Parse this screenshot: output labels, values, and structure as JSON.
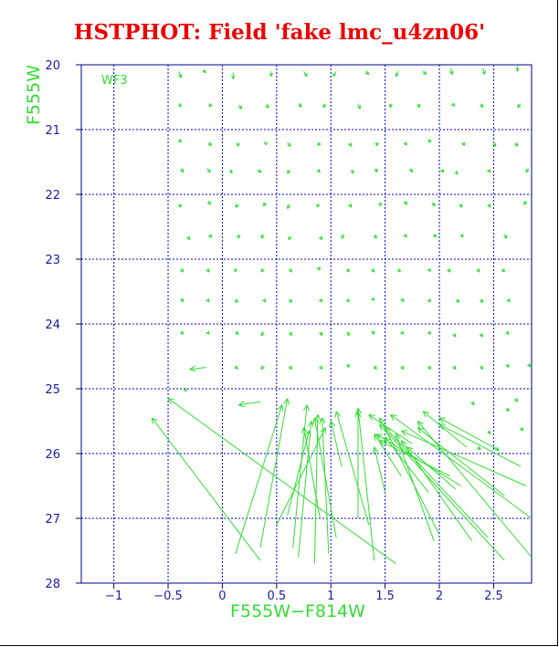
{
  "chart_data": {
    "type": "vector-field",
    "title": "HSTPHOT: Field 'fake lmc_u4zn06'",
    "panel_label": "WF3",
    "xlabel": "F555W−F814W",
    "ylabel": "F555W",
    "xlim": [
      -1.3,
      2.85
    ],
    "ylim": [
      28,
      20
    ],
    "x_ticks": [
      "−1",
      "−0.5",
      "0",
      "0.5",
      "1",
      "1.5",
      "2",
      "2.5"
    ],
    "x_tick_values": [
      -1,
      -0.5,
      0,
      0.5,
      1,
      1.5,
      2,
      2.5
    ],
    "y_ticks": [
      "20",
      "21",
      "22",
      "23",
      "24",
      "25",
      "26",
      "27",
      "28"
    ],
    "y_tick_values": [
      20,
      21,
      22,
      23,
      24,
      25,
      26,
      27,
      28
    ],
    "grid": true,
    "colors": {
      "vectors": "#33dd33",
      "grid": "#0000cc",
      "axis": "#000080",
      "title": "#ee0000"
    },
    "vectors": [
      [
        -0.4,
        20.1,
        -0.38,
        20.2
      ],
      [
        -0.18,
        20.08,
        -0.15,
        20.12
      ],
      [
        0.1,
        20.12,
        0.1,
        20.22
      ],
      [
        0.45,
        20.1,
        0.45,
        20.18
      ],
      [
        0.75,
        20.1,
        0.78,
        20.18
      ],
      [
        1.05,
        20.1,
        1.02,
        20.18
      ],
      [
        1.32,
        20.1,
        1.35,
        20.15
      ],
      [
        1.62,
        20.1,
        1.6,
        20.18
      ],
      [
        1.85,
        20.1,
        1.88,
        20.15
      ],
      [
        2.1,
        20.05,
        2.12,
        20.15
      ],
      [
        2.4,
        20.05,
        2.42,
        20.15
      ],
      [
        2.72,
        20.02,
        2.72,
        20.1
      ],
      [
        -0.4,
        20.6,
        -0.38,
        20.65
      ],
      [
        -0.1,
        20.6,
        -0.12,
        20.65
      ],
      [
        0.15,
        20.62,
        0.18,
        20.68
      ],
      [
        0.4,
        20.62,
        0.43,
        20.66
      ],
      [
        0.7,
        20.6,
        0.73,
        20.65
      ],
      [
        0.95,
        20.6,
        0.93,
        20.66
      ],
      [
        1.25,
        20.6,
        1.27,
        20.68
      ],
      [
        1.55,
        20.6,
        1.55,
        20.66
      ],
      [
        1.8,
        20.6,
        1.82,
        20.66
      ],
      [
        2.12,
        20.6,
        2.14,
        20.64
      ],
      [
        2.38,
        20.6,
        2.4,
        20.66
      ],
      [
        2.75,
        20.6,
        2.72,
        20.66
      ],
      [
        -0.4,
        21.15,
        -0.38,
        21.2
      ],
      [
        -0.13,
        21.2,
        -0.1,
        21.25
      ],
      [
        0.15,
        21.2,
        0.14,
        21.26
      ],
      [
        0.4,
        21.2,
        0.4,
        21.24
      ],
      [
        0.6,
        21.2,
        0.63,
        21.26
      ],
      [
        0.9,
        21.2,
        0.88,
        21.25
      ],
      [
        1.17,
        21.2,
        1.19,
        21.26
      ],
      [
        1.42,
        21.2,
        1.43,
        21.25
      ],
      [
        1.68,
        21.2,
        1.7,
        21.24
      ],
      [
        1.92,
        21.15,
        1.9,
        21.2
      ],
      [
        2.22,
        21.2,
        2.23,
        21.25
      ],
      [
        2.5,
        21.2,
        2.52,
        21.26
      ],
      [
        2.7,
        21.2,
        2.72,
        21.26
      ],
      [
        -0.38,
        21.6,
        -0.36,
        21.66
      ],
      [
        -0.14,
        21.6,
        -0.11,
        21.66
      ],
      [
        0.07,
        21.62,
        0.09,
        21.67
      ],
      [
        0.32,
        21.62,
        0.36,
        21.66
      ],
      [
        0.62,
        21.62,
        0.6,
        21.68
      ],
      [
        0.88,
        21.62,
        0.9,
        21.66
      ],
      [
        1.2,
        21.62,
        1.2,
        21.68
      ],
      [
        1.42,
        21.6,
        1.42,
        21.66
      ],
      [
        1.73,
        21.6,
        1.75,
        21.66
      ],
      [
        2.02,
        21.62,
        2.04,
        21.66
      ],
      [
        2.15,
        21.65,
        2.17,
        21.69
      ],
      [
        2.45,
        21.62,
        2.47,
        21.66
      ],
      [
        2.82,
        21.6,
        2.8,
        21.66
      ],
      [
        -0.4,
        22.15,
        -0.38,
        22.2
      ],
      [
        -0.13,
        22.1,
        -0.11,
        22.16
      ],
      [
        0.15,
        22.15,
        0.12,
        22.2
      ],
      [
        0.4,
        22.12,
        0.38,
        22.18
      ],
      [
        0.62,
        22.15,
        0.6,
        22.22
      ],
      [
        0.88,
        22.15,
        0.88,
        22.2
      ],
      [
        1.17,
        22.15,
        1.19,
        22.2
      ],
      [
        1.45,
        22.12,
        1.46,
        22.18
      ],
      [
        1.68,
        22.1,
        1.7,
        22.16
      ],
      [
        1.93,
        22.12,
        1.96,
        22.18
      ],
      [
        2.19,
        22.15,
        2.21,
        22.2
      ],
      [
        2.45,
        22.15,
        2.47,
        22.2
      ],
      [
        2.8,
        22.1,
        2.78,
        22.16
      ],
      [
        -0.32,
        22.65,
        -0.3,
        22.7
      ],
      [
        -0.12,
        22.62,
        -0.1,
        22.67
      ],
      [
        0.15,
        22.62,
        0.15,
        22.68
      ],
      [
        0.38,
        22.62,
        0.36,
        22.68
      ],
      [
        0.63,
        22.65,
        0.61,
        22.7
      ],
      [
        0.9,
        22.65,
        0.92,
        22.7
      ],
      [
        1.12,
        22.62,
        1.1,
        22.68
      ],
      [
        1.4,
        22.62,
        1.42,
        22.68
      ],
      [
        1.68,
        22.62,
        1.7,
        22.66
      ],
      [
        1.95,
        22.62,
        1.97,
        22.66
      ],
      [
        2.2,
        22.62,
        2.22,
        22.66
      ],
      [
        2.6,
        22.62,
        2.62,
        22.68
      ],
      [
        -0.38,
        23.15,
        -0.36,
        23.2
      ],
      [
        -0.14,
        23.15,
        -0.12,
        23.2
      ],
      [
        0.12,
        23.15,
        0.12,
        23.2
      ],
      [
        0.38,
        23.15,
        0.36,
        23.2
      ],
      [
        0.62,
        23.15,
        0.64,
        23.2
      ],
      [
        0.88,
        23.12,
        0.9,
        23.17
      ],
      [
        1.15,
        23.15,
        1.17,
        23.2
      ],
      [
        1.38,
        23.15,
        1.4,
        23.2
      ],
      [
        1.62,
        23.15,
        1.64,
        23.2
      ],
      [
        1.9,
        23.15,
        1.92,
        23.19
      ],
      [
        2.08,
        23.15,
        2.1,
        23.2
      ],
      [
        2.35,
        23.15,
        2.37,
        23.2
      ],
      [
        2.58,
        23.15,
        2.6,
        23.2
      ],
      [
        -0.38,
        23.6,
        -0.36,
        23.66
      ],
      [
        -0.14,
        23.62,
        -0.12,
        23.66
      ],
      [
        0.12,
        23.62,
        0.14,
        23.67
      ],
      [
        0.38,
        23.62,
        0.4,
        23.66
      ],
      [
        0.62,
        23.62,
        0.64,
        23.67
      ],
      [
        0.9,
        23.62,
        0.92,
        23.66
      ],
      [
        1.15,
        23.62,
        1.17,
        23.66
      ],
      [
        1.38,
        23.6,
        1.4,
        23.64
      ],
      [
        1.65,
        23.6,
        1.67,
        23.66
      ],
      [
        1.9,
        23.62,
        1.92,
        23.66
      ],
      [
        2.16,
        23.62,
        2.18,
        23.67
      ],
      [
        2.38,
        23.62,
        2.4,
        23.67
      ],
      [
        2.63,
        23.62,
        2.65,
        23.66
      ],
      [
        -0.38,
        24.12,
        -0.36,
        24.16
      ],
      [
        -0.14,
        24.12,
        -0.12,
        24.16
      ],
      [
        0.12,
        24.12,
        0.15,
        24.16
      ],
      [
        0.38,
        24.12,
        0.36,
        24.18
      ],
      [
        0.62,
        24.12,
        0.64,
        24.18
      ],
      [
        0.9,
        24.12,
        0.92,
        24.18
      ],
      [
        1.15,
        24.12,
        1.17,
        24.18
      ],
      [
        1.38,
        24.1,
        1.4,
        24.16
      ],
      [
        1.65,
        24.12,
        1.67,
        24.16
      ],
      [
        1.9,
        24.12,
        1.92,
        24.16
      ],
      [
        2.13,
        24.15,
        2.15,
        24.2
      ],
      [
        2.38,
        24.15,
        2.4,
        24.2
      ],
      [
        2.62,
        24.12,
        2.64,
        24.16
      ],
      [
        -0.15,
        24.67,
        -0.3,
        24.7
      ],
      [
        0.12,
        24.65,
        0.14,
        24.7
      ],
      [
        0.38,
        24.65,
        0.36,
        24.7
      ],
      [
        0.62,
        24.65,
        0.64,
        24.7
      ],
      [
        0.9,
        24.65,
        0.92,
        24.7
      ],
      [
        1.15,
        24.62,
        1.17,
        24.67
      ],
      [
        1.4,
        24.65,
        1.42,
        24.7
      ],
      [
        1.65,
        24.65,
        1.67,
        24.7
      ],
      [
        1.9,
        24.65,
        1.92,
        24.7
      ],
      [
        2.13,
        24.65,
        2.15,
        24.7
      ],
      [
        2.38,
        24.65,
        2.4,
        24.7
      ],
      [
        2.62,
        24.62,
        2.64,
        24.67
      ],
      [
        2.82,
        24.62,
        2.84,
        24.66
      ],
      [
        -0.35,
        25.0,
        -0.33,
        25.04
      ],
      [
        0.35,
        25.2,
        0.15,
        25.25
      ],
      [
        2.7,
        25.15,
        2.72,
        25.2
      ],
      [
        2.3,
        25.2,
        2.32,
        25.25
      ],
      [
        2.62,
        25.3,
        2.64,
        25.35
      ],
      [
        2.45,
        25.65,
        2.47,
        25.7
      ],
      [
        2.75,
        25.6,
        2.77,
        25.65
      ],
      [
        2.35,
        25.9,
        2.38,
        25.94
      ],
      [
        2.5,
        25.9,
        2.55,
        25.95
      ],
      [
        0.35,
        27.65,
        -0.65,
        25.45
      ],
      [
        1.6,
        27.7,
        -0.5,
        25.15
      ],
      [
        0.12,
        27.55,
        0.55,
        25.25
      ],
      [
        0.35,
        27.45,
        0.6,
        25.15
      ],
      [
        0.65,
        27.45,
        0.78,
        25.25
      ],
      [
        0.7,
        27.6,
        0.82,
        25.5
      ],
      [
        0.85,
        27.7,
        0.88,
        25.4
      ],
      [
        0.98,
        27.55,
        0.92,
        25.45
      ],
      [
        1.4,
        27.65,
        1.25,
        25.3
      ],
      [
        1.05,
        27.3,
        0.85,
        25.45
      ],
      [
        1.25,
        27.0,
        1.25,
        25.35
      ],
      [
        1.35,
        27.1,
        1.05,
        25.35
      ],
      [
        2.0,
        27.25,
        1.45,
        25.45
      ],
      [
        2.85,
        27.0,
        1.55,
        25.4
      ],
      [
        2.6,
        27.65,
        1.45,
        25.55
      ],
      [
        2.85,
        27.6,
        1.8,
        25.5
      ],
      [
        2.8,
        26.5,
        1.65,
        25.65
      ],
      [
        2.45,
        27.3,
        1.5,
        25.6
      ],
      [
        2.3,
        27.35,
        1.65,
        25.8
      ],
      [
        1.95,
        27.35,
        1.6,
        25.7
      ],
      [
        1.9,
        26.6,
        1.5,
        25.75
      ],
      [
        2.6,
        26.65,
        1.8,
        25.6
      ],
      [
        2.2,
        26.5,
        1.42,
        25.7
      ],
      [
        1.65,
        26.35,
        1.4,
        25.7
      ],
      [
        2.1,
        26.35,
        1.45,
        25.8
      ],
      [
        2.15,
        26.55,
        1.7,
        25.9
      ],
      [
        2.75,
        26.2,
        2.0,
        25.55
      ],
      [
        2.55,
        25.95,
        2.0,
        25.45
      ],
      [
        0.5,
        27.1,
        0.95,
        25.6
      ],
      [
        0.6,
        26.95,
        0.8,
        25.65
      ],
      [
        0.9,
        27.0,
        0.75,
        25.6
      ],
      [
        1.1,
        26.2,
        1.0,
        25.5
      ],
      [
        1.5,
        26.6,
        1.4,
        25.9
      ],
      [
        1.75,
        25.85,
        1.35,
        25.4
      ],
      [
        2.25,
        25.9,
        1.85,
        25.35
      ]
    ]
  }
}
